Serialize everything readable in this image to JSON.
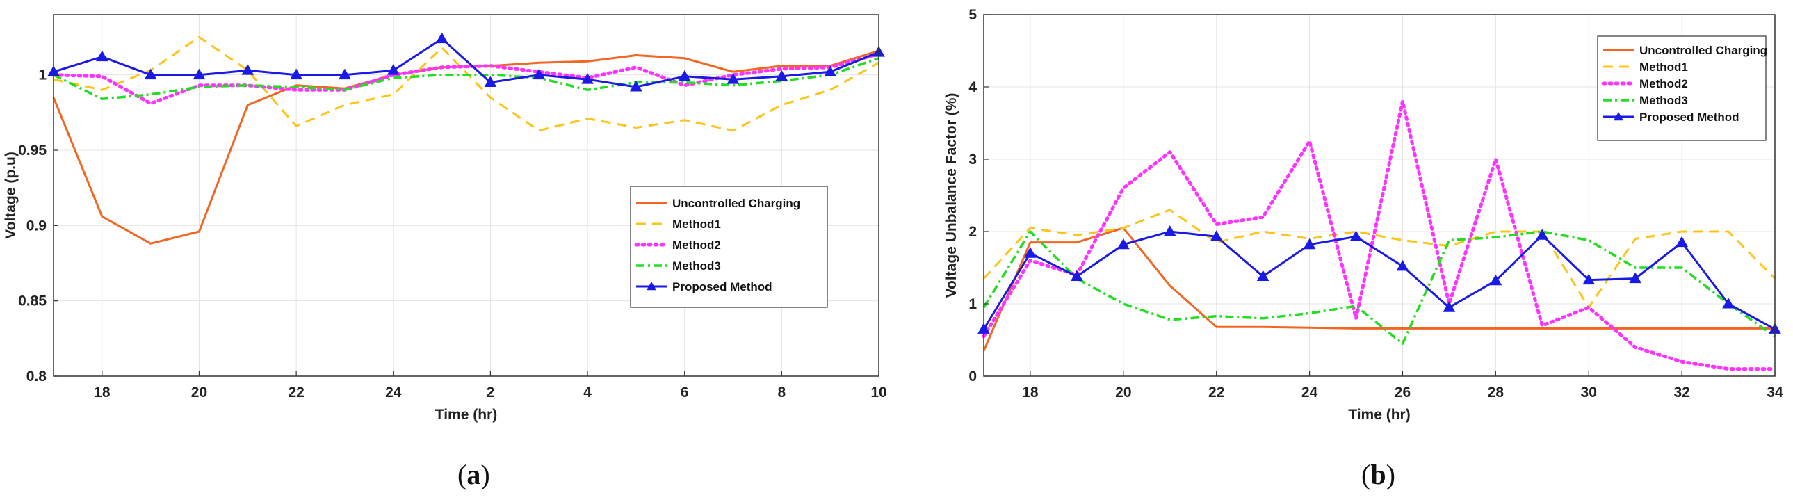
{
  "chart_data": [
    {
      "type": "line",
      "panel": "a",
      "caption": {
        "open": "(",
        "letter": "a",
        "close": ")"
      },
      "xlabel": "Time (hr)",
      "ylabel": "Voltage (p.u)",
      "xlim": [
        17,
        34
      ],
      "ylim": [
        0.8,
        1.04
      ],
      "x_ticks": [
        18,
        20,
        22,
        24,
        26,
        28,
        30,
        32,
        34
      ],
      "x_tick_labels": [
        "18",
        "20",
        "22",
        "24",
        "2",
        "4",
        "6",
        "8",
        "10"
      ],
      "y_ticks": [
        0.8,
        0.85,
        0.9,
        0.95,
        1.0
      ],
      "y_tick_labels": [
        "0.8",
        "0.85",
        "0.9",
        "0.95",
        "1"
      ],
      "grid": true,
      "legend_position": "center-right",
      "x": [
        17,
        18,
        19,
        20,
        21,
        22,
        23,
        24,
        25,
        26,
        27,
        28,
        29,
        30,
        31,
        32,
        33,
        34
      ],
      "series": [
        {
          "name": "Uncontrolled Charging",
          "color": "#f26522",
          "style": "solid",
          "marker": "none",
          "values": [
            0.985,
            0.906,
            0.888,
            0.896,
            0.98,
            0.993,
            0.991,
            1.0,
            1.005,
            1.006,
            1.008,
            1.009,
            1.013,
            1.011,
            1.002,
            1.006,
            1.006,
            1.016
          ]
        },
        {
          "name": "Method1",
          "color": "#fcc419",
          "style": "dashed",
          "marker": "none",
          "values": [
            0.997,
            0.99,
            1.003,
            1.025,
            1.003,
            0.966,
            0.98,
            0.987,
            1.018,
            0.985,
            0.963,
            0.971,
            0.965,
            0.97,
            0.963,
            0.98,
            0.99,
            1.008
          ]
        },
        {
          "name": "Method2",
          "color": "#ff33ff",
          "style": "dotted",
          "marker": "none",
          "values": [
            1.0,
            0.999,
            0.981,
            0.993,
            0.993,
            0.99,
            0.99,
            1.0,
            1.005,
            1.006,
            1.002,
            0.998,
            1.005,
            0.993,
            1.0,
            1.004,
            1.005,
            1.014
          ]
        },
        {
          "name": "Method3",
          "color": "#22dd22",
          "style": "dashdot",
          "marker": "none",
          "values": [
            1.0,
            0.984,
            0.987,
            0.992,
            0.993,
            0.992,
            0.99,
            0.998,
            1.0,
            1.0,
            0.998,
            0.99,
            0.995,
            0.995,
            0.993,
            0.996,
            1.0,
            1.011
          ]
        },
        {
          "name": "Proposed Method",
          "color": "#1a1ae6",
          "style": "solid",
          "marker": "triangle",
          "values": [
            1.002,
            1.012,
            1.0,
            1.0,
            1.003,
            1.0,
            1.0,
            1.003,
            1.024,
            0.995,
            1.0,
            0.997,
            0.992,
            0.999,
            0.997,
            0.999,
            1.002,
            1.015
          ]
        }
      ]
    },
    {
      "type": "line",
      "panel": "b",
      "caption": {
        "open": "(",
        "letter": "b",
        "close": ")"
      },
      "xlabel": "Time (hr)",
      "ylabel": "Voltage Unbalance Factor (%)",
      "xlim": [
        17,
        34
      ],
      "ylim": [
        0,
        5
      ],
      "x_ticks": [
        18,
        20,
        22,
        24,
        26,
        28,
        30,
        32,
        34
      ],
      "x_tick_labels": [
        "18",
        "20",
        "22",
        "24",
        "26",
        "28",
        "30",
        "32",
        "34"
      ],
      "y_ticks": [
        0,
        1,
        2,
        3,
        4,
        5
      ],
      "y_tick_labels": [
        "0",
        "1",
        "2",
        "3",
        "4",
        "5"
      ],
      "grid": true,
      "legend_position": "top-right",
      "x": [
        17,
        18,
        19,
        20,
        21,
        22,
        23,
        24,
        25,
        26,
        27,
        28,
        29,
        30,
        31,
        32,
        33,
        34
      ],
      "series": [
        {
          "name": "Uncontrolled Charging",
          "color": "#f26522",
          "style": "solid",
          "marker": "none",
          "values": [
            0.35,
            1.85,
            1.85,
            2.05,
            1.25,
            0.68,
            0.68,
            0.67,
            0.66,
            0.66,
            0.66,
            0.66,
            0.66,
            0.66,
            0.66,
            0.66,
            0.66,
            0.66
          ]
        },
        {
          "name": "Method1",
          "color": "#fcc419",
          "style": "dashed",
          "marker": "none",
          "values": [
            1.35,
            2.05,
            1.95,
            2.05,
            2.3,
            1.85,
            2.0,
            1.9,
            2.0,
            1.88,
            1.8,
            2.0,
            2.0,
            0.95,
            1.9,
            2.0,
            2.0,
            1.35
          ]
        },
        {
          "name": "Method2",
          "color": "#ff33ff",
          "style": "dotted",
          "marker": "none",
          "values": [
            0.55,
            1.6,
            1.4,
            2.6,
            3.1,
            2.1,
            2.2,
            3.25,
            0.8,
            3.8,
            1.0,
            3.0,
            0.7,
            0.95,
            0.4,
            0.2,
            0.1,
            0.1
          ]
        },
        {
          "name": "Method3",
          "color": "#22dd22",
          "style": "dashdot",
          "marker": "none",
          "values": [
            0.95,
            2.0,
            1.35,
            1.0,
            0.78,
            0.83,
            0.8,
            0.87,
            0.97,
            0.45,
            1.88,
            1.92,
            2.0,
            1.88,
            1.5,
            1.5,
            1.0,
            0.55
          ]
        },
        {
          "name": "Proposed Method",
          "color": "#1a1ae6",
          "style": "solid",
          "marker": "triangle",
          "values": [
            0.65,
            1.7,
            1.38,
            1.82,
            2.0,
            1.93,
            1.38,
            1.82,
            1.93,
            1.52,
            0.95,
            1.32,
            1.95,
            1.33,
            1.35,
            1.85,
            1.0,
            0.65
          ]
        }
      ]
    }
  ]
}
